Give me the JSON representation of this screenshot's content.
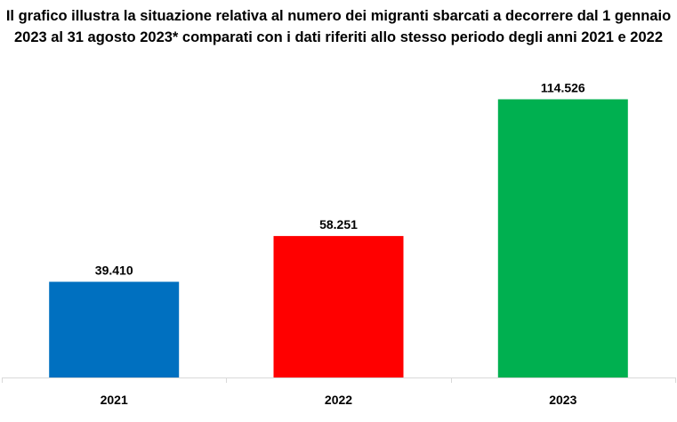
{
  "chart_data": {
    "type": "bar",
    "title": "Il grafico illustra la situazione relativa al numero dei migranti sbarcati a decorrere dal 1 gennaio 2023 al 31 agosto 2023* comparati con i dati riferiti allo stesso periodo degli anni 2021 e 2022",
    "categories": [
      "2021",
      "2022",
      "2023"
    ],
    "values": [
      39410,
      58251,
      114526
    ],
    "value_labels": [
      "39.410",
      "58.251",
      "114.526"
    ],
    "colors": [
      "#0070C0",
      "#FF0000",
      "#00B050"
    ],
    "xlabel": "",
    "ylabel": "",
    "ylim": [
      0,
      140000
    ],
    "grid": false,
    "legend": "none"
  }
}
